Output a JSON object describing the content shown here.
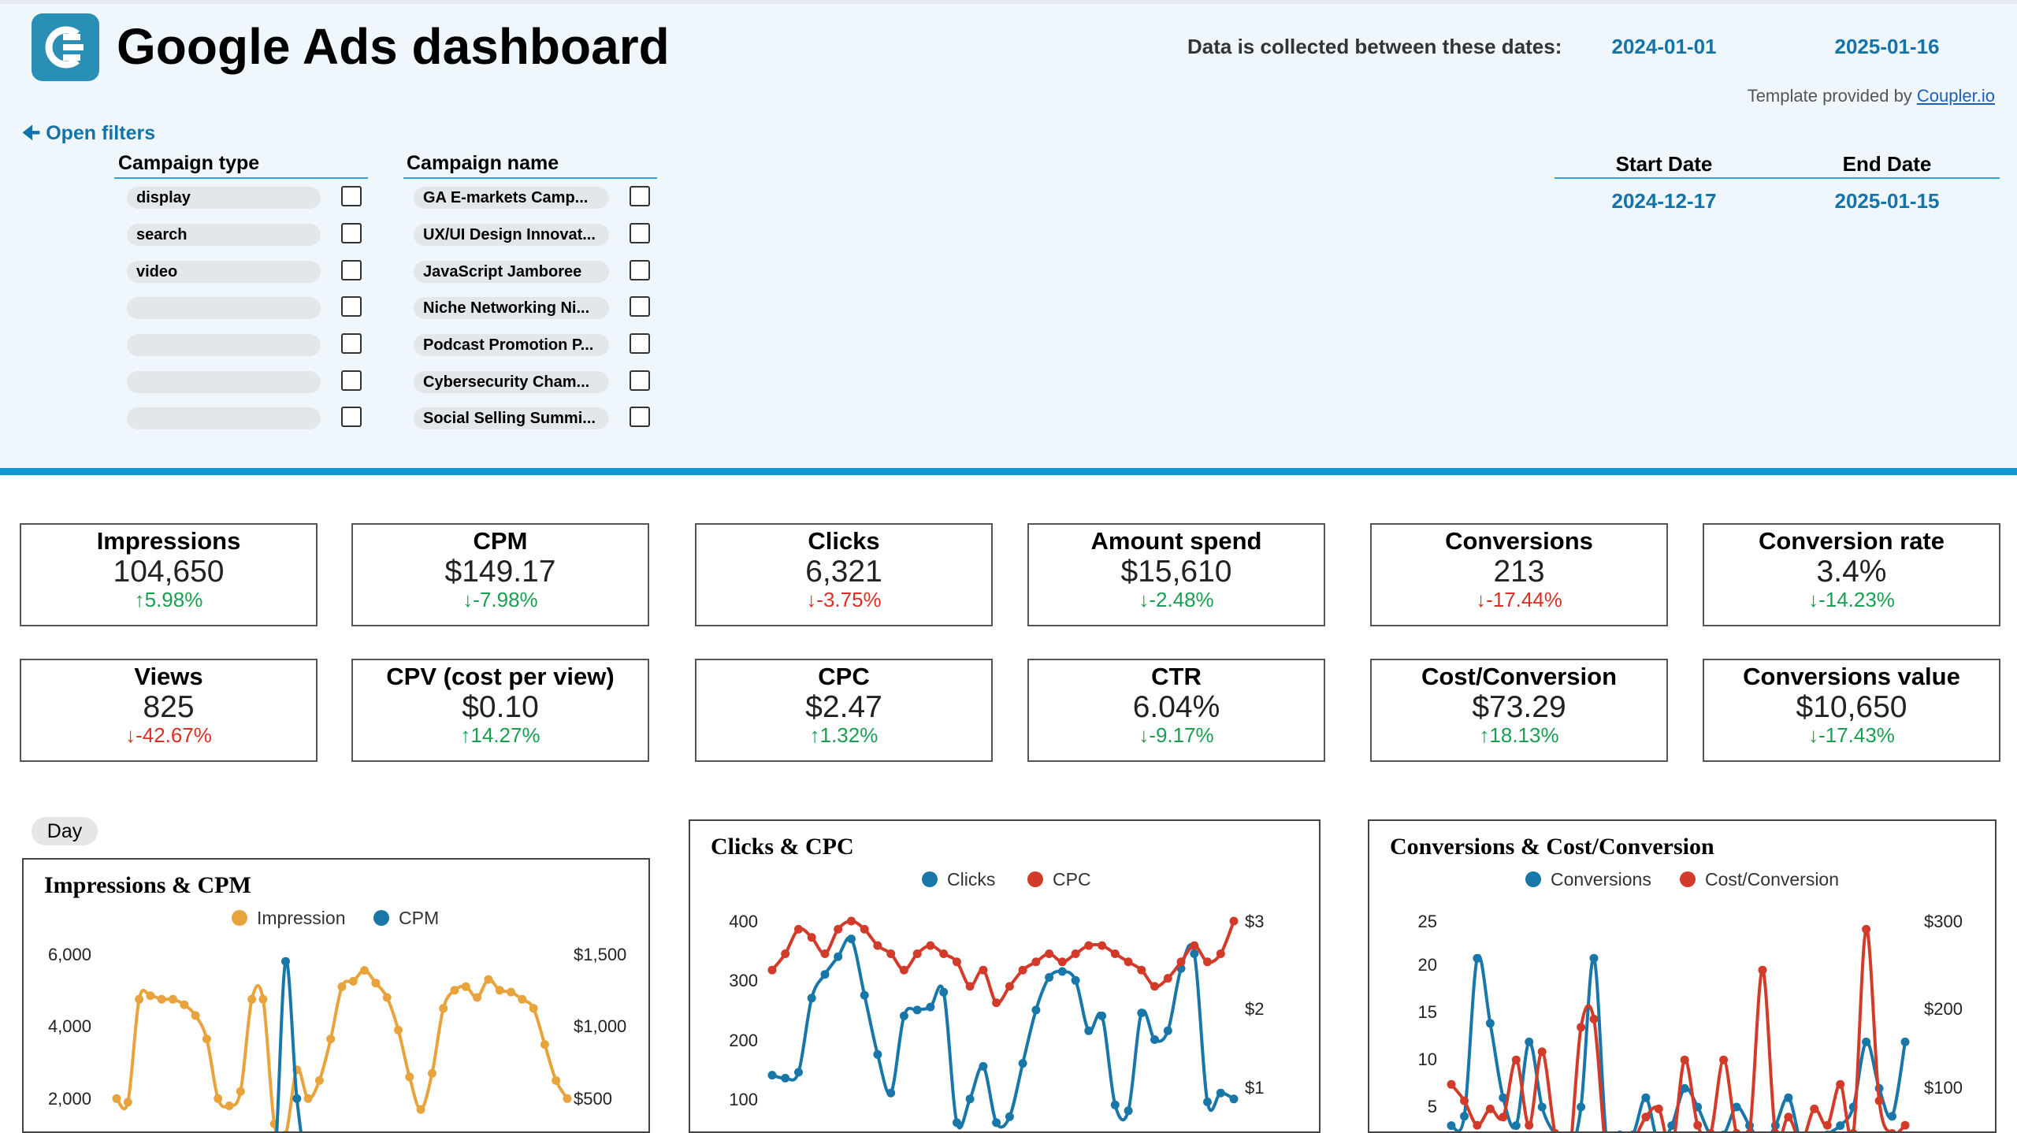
{
  "header": {
    "title": "Google Ads dashboard",
    "dates_label": "Data is collected between these dates:",
    "date_from": "2024-01-01",
    "date_to": "2025-01-16",
    "template_prefix": "Template provided by ",
    "template_link": "Coupler.io",
    "open_filters": "Open filters"
  },
  "filters": {
    "campaign_type_header": "Campaign type",
    "campaign_name_header": "Campaign name",
    "campaign_types": [
      "display",
      "search",
      "video",
      "",
      "",
      "",
      ""
    ],
    "campaign_names": [
      "GA E-markets Camp...",
      "UX/UI Design Innovat...",
      "JavaScript Jamboree",
      "Niche Networking Ni...",
      "Podcast Promotion P...",
      "Cybersecurity Cham...",
      "Social Selling Summi..."
    ],
    "start_date_header": "Start Date",
    "end_date_header": "End Date",
    "start_date": "2024-12-17",
    "end_date": "2025-01-15"
  },
  "kpis": [
    {
      "title": "Impressions",
      "value": "104,650",
      "delta": "5.98%",
      "trend": "up",
      "color": "green"
    },
    {
      "title": "CPM",
      "value": "$149.17",
      "delta": "-7.98%",
      "trend": "down",
      "color": "green"
    },
    {
      "title": "Clicks",
      "value": "6,321",
      "delta": "-3.75%",
      "trend": "down",
      "color": "red"
    },
    {
      "title": "Amount spend",
      "value": "$15,610",
      "delta": "-2.48%",
      "trend": "down",
      "color": "green"
    },
    {
      "title": "Conversions",
      "value": "213",
      "delta": "-17.44%",
      "trend": "down",
      "color": "red"
    },
    {
      "title": "Conversion rate",
      "value": "3.4%",
      "delta": "-14.23%",
      "trend": "down",
      "color": "green"
    },
    {
      "title": "Views",
      "value": "825",
      "delta": "-42.67%",
      "trend": "down",
      "color": "red"
    },
    {
      "title": "CPV (cost per view)",
      "value": "$0.10",
      "delta": "14.27%",
      "trend": "up",
      "color": "green"
    },
    {
      "title": "CPC",
      "value": "$2.47",
      "delta": "1.32%",
      "trend": "up",
      "color": "green"
    },
    {
      "title": "CTR",
      "value": "6.04%",
      "delta": "-9.17%",
      "trend": "down",
      "color": "green"
    },
    {
      "title": "Cost/Conversion",
      "value": "$73.29",
      "delta": "18.13%",
      "trend": "up",
      "color": "green"
    },
    {
      "title": "Conversions value",
      "value": "$10,650",
      "delta": "-17.43%",
      "trend": "down",
      "color": "green"
    }
  ],
  "day_chip": "Day",
  "colors": {
    "orange": "#e8a33d",
    "blue": "#1877a8",
    "red": "#d23b2a",
    "green": "#1a9e50",
    "accent": "#0e9ad0"
  },
  "chart_data": [
    {
      "type": "line",
      "title": "Impressions & CPM",
      "series": [
        {
          "name": "Impression",
          "color": "#e8a33d",
          "axis": "left",
          "values": [
            2000,
            1900,
            4750,
            4850,
            4750,
            4750,
            4600,
            4300,
            3650,
            2000,
            1800,
            2200,
            4750,
            4750,
            1300,
            1000,
            2800,
            2000,
            2500,
            3650,
            5100,
            5250,
            5550,
            5200,
            4800,
            3900,
            2600,
            1700,
            2700,
            4500,
            5000,
            5100,
            4800,
            5300,
            5000,
            4950,
            4750,
            4500,
            3500,
            2500,
            2000
          ]
        },
        {
          "name": "CPM",
          "color": "#1877a8",
          "axis": "right",
          "values": [
            0,
            0,
            0,
            0,
            0,
            0,
            0,
            0,
            0,
            0,
            0,
            0,
            0,
            0,
            0,
            1450,
            500,
            0,
            0,
            0,
            0,
            0,
            0,
            0,
            0,
            0,
            0,
            0,
            0,
            0,
            0,
            0,
            0,
            0,
            0,
            0,
            0,
            0,
            0,
            0,
            0
          ]
        }
      ],
      "left_ticks": [
        "2,000",
        "4,000",
        "6,000"
      ],
      "right_ticks": [
        "$500",
        "$1,000",
        "$1,500"
      ],
      "ylim_left": [
        0,
        6000
      ],
      "ylim_right": [
        0,
        1500
      ]
    },
    {
      "type": "line",
      "title": "Clicks & CPC",
      "series": [
        {
          "name": "Clicks",
          "color": "#1877a8",
          "axis": "left",
          "values": [
            140,
            135,
            145,
            270,
            310,
            340,
            370,
            275,
            175,
            110,
            240,
            250,
            255,
            280,
            60,
            100,
            155,
            60,
            70,
            160,
            250,
            305,
            315,
            300,
            215,
            240,
            90,
            80,
            245,
            200,
            215,
            320,
            345,
            95,
            110,
            100
          ]
        },
        {
          "name": "CPC",
          "color": "#d23b2a",
          "axis": "right",
          "values": [
            2.4,
            2.6,
            2.9,
            2.8,
            2.6,
            2.9,
            3.0,
            2.9,
            2.7,
            2.6,
            2.4,
            2.6,
            2.7,
            2.6,
            2.5,
            2.2,
            2.4,
            2.0,
            2.2,
            2.4,
            2.5,
            2.6,
            2.5,
            2.6,
            2.7,
            2.7,
            2.6,
            2.5,
            2.4,
            2.2,
            2.3,
            2.5,
            2.7,
            2.5,
            2.6,
            3.0
          ]
        }
      ],
      "left_ticks": [
        "100",
        "200",
        "300",
        "400"
      ],
      "right_ticks": [
        "$1",
        "$2",
        "$3"
      ],
      "ylim_left": [
        0,
        400
      ],
      "ylim_right": [
        0,
        3
      ]
    },
    {
      "type": "line",
      "title": "Conversions & Cost/Conversion",
      "series": [
        {
          "name": "Conversions",
          "color": "#1877a8",
          "axis": "left",
          "values": [
            3,
            4,
            21,
            14,
            6,
            3,
            12,
            5,
            2,
            0,
            5,
            21,
            1,
            2,
            2,
            6,
            1,
            3,
            7,
            5,
            2,
            2,
            5,
            3,
            1,
            3,
            6,
            1,
            0,
            2,
            3,
            5,
            12,
            7,
            4,
            12
          ]
        },
        {
          "name": "Cost/Conversion",
          "color": "#d23b2a",
          "axis": "right",
          "values": [
            100,
            80,
            50,
            70,
            60,
            130,
            50,
            140,
            40,
            0,
            170,
            180,
            10,
            20,
            30,
            60,
            70,
            20,
            130,
            50,
            40,
            130,
            40,
            40,
            240,
            40,
            60,
            30,
            70,
            50,
            100,
            40,
            290,
            80,
            40,
            50
          ]
        }
      ],
      "left_ticks": [
        "5",
        "10",
        "15",
        "20",
        "25"
      ],
      "right_ticks": [
        "$100",
        "$200",
        "$300"
      ],
      "ylim_left": [
        0,
        25
      ],
      "ylim_right": [
        0,
        300
      ]
    }
  ]
}
